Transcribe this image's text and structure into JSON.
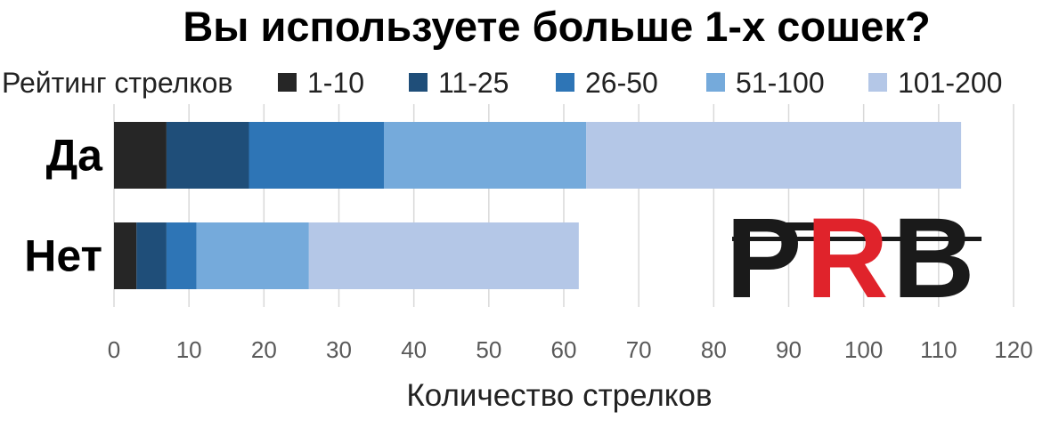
{
  "chart_data": {
    "type": "bar",
    "orientation": "horizontal",
    "stacked": true,
    "title": "Вы используете больше 1-х сошек?",
    "legend_title": "Рейтинг стрелков",
    "legend_position": "top",
    "categories": [
      "Да",
      "Нет"
    ],
    "series": [
      {
        "name": "1-10",
        "color": "#262626",
        "values": [
          7,
          3
        ]
      },
      {
        "name": "11-25",
        "color": "#1f4e79",
        "values": [
          11,
          4
        ]
      },
      {
        "name": "26-50",
        "color": "#2e75b6",
        "values": [
          18,
          4
        ]
      },
      {
        "name": "51-100",
        "color": "#75aadb",
        "values": [
          27,
          15
        ]
      },
      {
        "name": "101-200",
        "color": "#b4c7e7",
        "values": [
          50,
          36
        ]
      }
    ],
    "xlabel": "Количество стрелков",
    "xlim": [
      0,
      120
    ],
    "xticks": [
      0,
      10,
      20,
      30,
      40,
      50,
      60,
      70,
      80,
      90,
      100,
      110,
      120
    ],
    "grid": true
  },
  "logo": {
    "text_left": "P",
    "text_middle": "R",
    "text_right": "B",
    "color_dark": "#1a1a1a",
    "color_accent": "#e0232b"
  }
}
